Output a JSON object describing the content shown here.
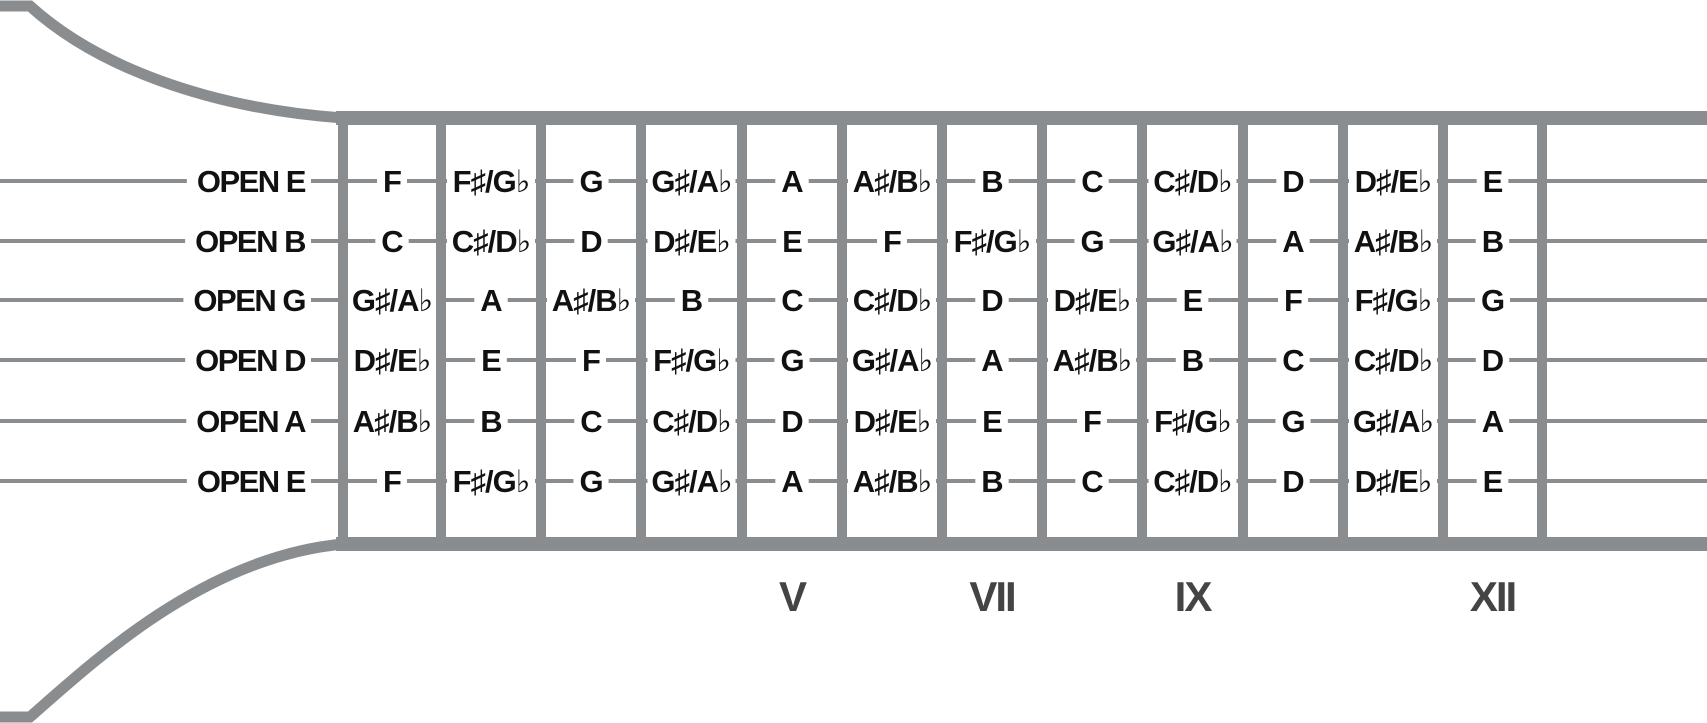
{
  "colors": {
    "frame": "#8a8d90",
    "string": "#8a8d90",
    "text": "#111111",
    "marker": "#444444",
    "background": "#ffffff"
  },
  "strings": [
    {
      "label": "OPEN E",
      "notes": [
        "F",
        "F♯/G♭",
        "G",
        "G♯/A♭",
        "A",
        "A♯/B♭",
        "B",
        "C",
        "C♯/D♭",
        "D",
        "D♯/E♭",
        "E"
      ]
    },
    {
      "label": "OPEN B",
      "notes": [
        "C",
        "C♯/D♭",
        "D",
        "D♯/E♭",
        "E",
        "F",
        "F♯/G♭",
        "G",
        "G♯/A♭",
        "A",
        "A♯/B♭",
        "B"
      ]
    },
    {
      "label": "OPEN G",
      "notes": [
        "G♯/A♭",
        "A",
        "A♯/B♭",
        "B",
        "C",
        "C♯/D♭",
        "D",
        "D♯/E♭",
        "E",
        "F",
        "F♯/G♭",
        "G"
      ]
    },
    {
      "label": "OPEN D",
      "notes": [
        "D♯/E♭",
        "E",
        "F",
        "F♯/G♭",
        "G",
        "G♯/A♭",
        "A",
        "A♯/B♭",
        "B",
        "C",
        "C♯/D♭",
        "D"
      ]
    },
    {
      "label": "OPEN A",
      "notes": [
        "A♯/B♭",
        "B",
        "C",
        "C♯/D♭",
        "D",
        "D♯/E♭",
        "E",
        "F",
        "F♯/G♭",
        "G",
        "G♯/A♭",
        "A"
      ]
    },
    {
      "label": "OPEN E",
      "notes": [
        "F",
        "F♯/G♭",
        "G",
        "G♯/A♭",
        "A",
        "A♯/B♭",
        "B",
        "C",
        "C♯/D♭",
        "D",
        "D♯/E♭",
        "E"
      ]
    }
  ],
  "fret_markers": [
    {
      "fret": 5,
      "label": "V"
    },
    {
      "fret": 7,
      "label": "VII"
    },
    {
      "fret": 9,
      "label": "IX"
    },
    {
      "fret": 12,
      "label": "XII"
    }
  ]
}
